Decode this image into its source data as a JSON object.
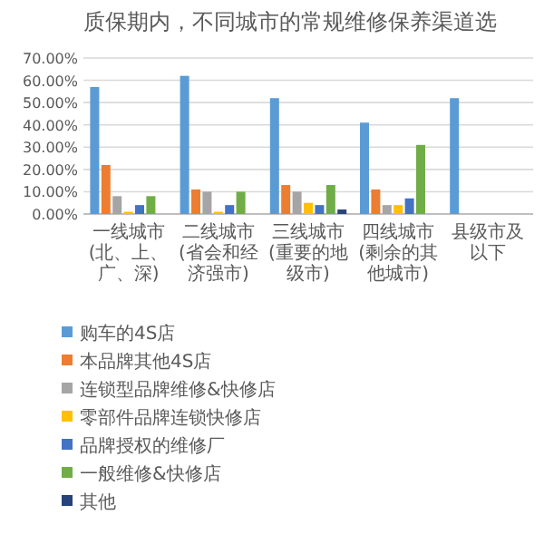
{
  "chart_data": {
    "type": "bar",
    "title": "质保期内，不同城市的常规维修保养渠道选",
    "categories": [
      "一线城市(北、上、广、深)",
      "二线城市(省会和经济强市)",
      "三线城市(重要的地级市)",
      "四线城市(剩余的其他城市)",
      "县级市及以下"
    ],
    "series": [
      {
        "name": "购车的4S店",
        "color": "#5b9bd5",
        "values": [
          57,
          62,
          52,
          41,
          52
        ]
      },
      {
        "name": "本品牌其他4S店",
        "color": "#ed7d31",
        "values": [
          22,
          11,
          13,
          11,
          null
        ]
      },
      {
        "name": "连锁型品牌维修&快修店",
        "color": "#a5a5a5",
        "values": [
          8,
          10,
          10,
          4,
          null
        ]
      },
      {
        "name": "零部件品牌连锁快修店",
        "color": "#ffc000",
        "values": [
          1,
          1,
          5,
          4,
          null
        ]
      },
      {
        "name": "品牌授权的维修厂",
        "color": "#4472c4",
        "values": [
          4,
          4,
          4,
          7,
          null
        ]
      },
      {
        "name": "一般维修&快修店",
        "color": "#70ad47",
        "values": [
          8,
          10,
          13,
          31,
          null
        ]
      },
      {
        "name": "其他",
        "color": "#264478",
        "values": [
          null,
          null,
          2,
          null,
          null
        ]
      }
    ],
    "ylim": [
      0,
      70
    ],
    "yticks": [
      {
        "value": 0,
        "label": "0.00%"
      },
      {
        "value": 10,
        "label": "10.00%"
      },
      {
        "value": 20,
        "label": "20.00%"
      },
      {
        "value": 30,
        "label": "30.00%"
      },
      {
        "value": 40,
        "label": "40.00%"
      },
      {
        "value": 50,
        "label": "50.00%"
      },
      {
        "value": 60,
        "label": "60.00%"
      },
      {
        "value": 70,
        "label": "70.00%"
      }
    ],
    "grid": "y",
    "legend": "bottom"
  }
}
